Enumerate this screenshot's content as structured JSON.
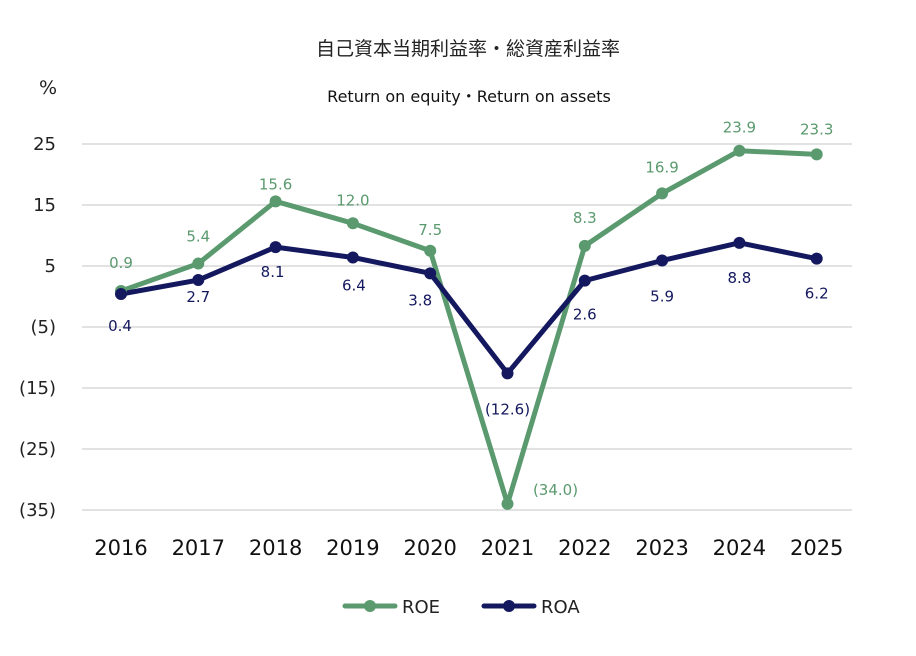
{
  "chart_data": {
    "type": "line",
    "title": "自己資本当期利益率・総資産利益率",
    "subtitle": "Return on equity・Return on assets",
    "y_unit": "%",
    "categories": [
      "2016",
      "2017",
      "2018",
      "2019",
      "2020",
      "2021",
      "2022",
      "2023",
      "2024",
      "2025"
    ],
    "ylim": [
      -35,
      25
    ],
    "yticks": [
      25,
      15,
      5,
      -5,
      -15,
      -25,
      -35
    ],
    "ytick_labels": [
      "25",
      "15",
      "5",
      "(5)",
      "(15)",
      "(25)",
      "(35)"
    ],
    "grid": true,
    "legend_position": "bottom",
    "series": [
      {
        "name": "ROE",
        "color": "#5a9a6e",
        "values": [
          0.9,
          5.4,
          15.6,
          12.0,
          7.5,
          -34.0,
          8.3,
          16.9,
          23.9,
          23.3
        ],
        "labels": [
          "0.9",
          "5.4",
          "15.6",
          "12.0",
          "7.5",
          "(34.0)",
          "8.3",
          "16.9",
          "23.9",
          "23.3"
        ]
      },
      {
        "name": "ROA",
        "color": "#14185e",
        "values": [
          0.4,
          2.7,
          8.1,
          6.4,
          3.8,
          -12.6,
          2.6,
          5.9,
          8.8,
          6.2
        ],
        "labels": [
          "0.4",
          "2.7",
          "8.1",
          "6.4",
          "3.8",
          "(12.6)",
          "2.6",
          "5.9",
          "8.8",
          "6.2"
        ]
      }
    ]
  }
}
